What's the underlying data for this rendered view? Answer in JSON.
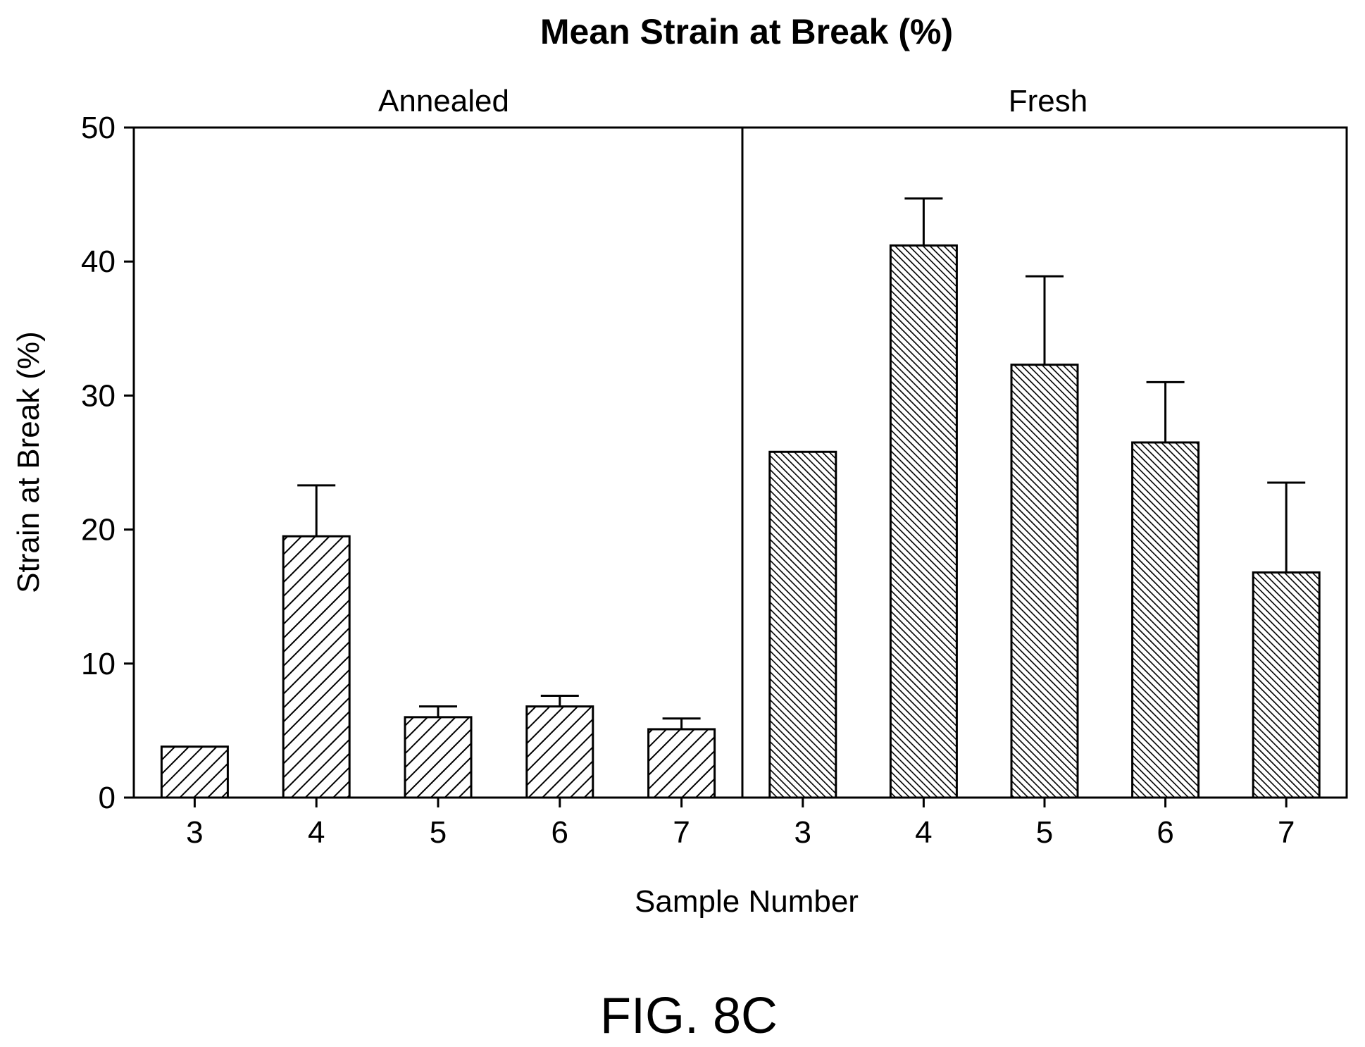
{
  "chart_data": {
    "type": "bar",
    "title": "Mean Strain at Break (%)",
    "ylabel": "Strain at Break (%)",
    "xlabel": "Sample Number",
    "ylim": [
      0,
      50
    ],
    "yticks": [
      "0",
      "10",
      "20",
      "30",
      "40",
      "50"
    ],
    "grid": false,
    "panels": [
      {
        "name": "Annealed",
        "categories": [
          "3",
          "4",
          "5",
          "6",
          "7"
        ],
        "values": [
          3.8,
          19.5,
          6.0,
          6.8,
          5.1
        ],
        "error_upper": [
          null,
          23.3,
          6.8,
          7.6,
          5.9
        ]
      },
      {
        "name": "Fresh",
        "categories": [
          "3",
          "4",
          "5",
          "6",
          "7"
        ],
        "values": [
          25.8,
          41.2,
          32.3,
          26.5,
          16.8
        ],
        "error_upper": [
          null,
          44.7,
          38.9,
          31.0,
          23.5
        ]
      }
    ]
  },
  "figure_label": "FIG. 8C"
}
